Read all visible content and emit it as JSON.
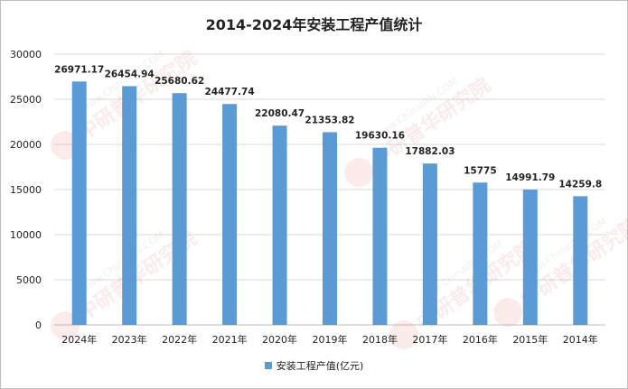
{
  "chart_data": {
    "type": "bar",
    "title": "2014-2024年安装工程产值统计",
    "categories": [
      "2024年",
      "2023年",
      "2022年",
      "2021年",
      "2020年",
      "2019年",
      "2018年",
      "2017年",
      "2016年",
      "2015年",
      "2014年"
    ],
    "series": [
      {
        "name": "安装工程产值(亿元)",
        "values": [
          26971.17,
          26454.94,
          25680.62,
          24477.74,
          22080.47,
          21353.82,
          19630.16,
          17882.03,
          15775,
          14991.79,
          14259.8
        ],
        "labels": [
          "26971.17",
          "26454.94",
          "25680.62",
          "24477.74",
          "22080.47",
          "21353.82",
          "19630.16",
          "17882.03",
          "15775",
          "14991.79",
          "14259.8"
        ]
      }
    ],
    "yticks": [
      "0",
      "5000",
      "10000",
      "15000",
      "20000",
      "25000",
      "30000"
    ],
    "ylim": [
      0,
      30000
    ],
    "grid": true,
    "legend": "bottom",
    "colors": {
      "bar": "#5b9bd5",
      "grid": "#d9d9d9",
      "axis": "#bfbfbf",
      "text": "#222222"
    }
  },
  "watermark": {
    "text": "中研普华研究院",
    "url": "www.ChinaIRN.COM"
  }
}
